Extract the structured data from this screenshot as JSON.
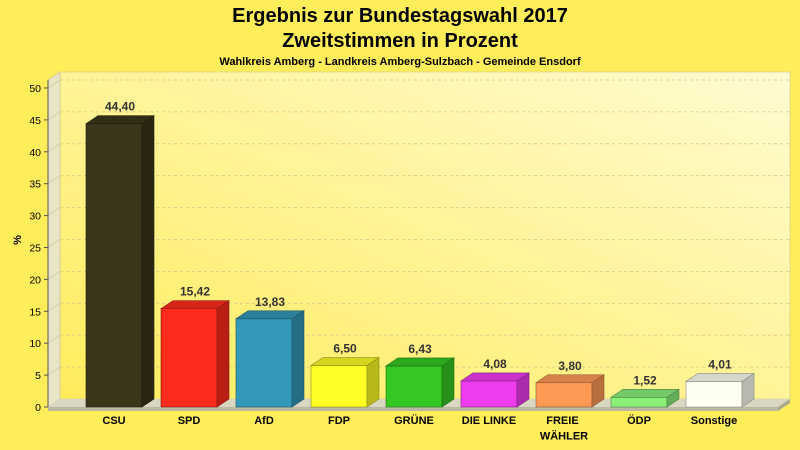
{
  "theme": {
    "background": "#ffed5a",
    "wall_light": "#fffbd2",
    "wall_base": "#ffec5c",
    "value_label_color": "#333333"
  },
  "chart_data": {
    "type": "bar",
    "bar_style": "3d",
    "title": "Ergebnis zur Bundestagswahl 2017",
    "title_line2": "Zweitstimmen in Prozent",
    "subtitle": "Wahlkreis Amberg - Landkreis Amberg-Sulzbach - Gemeinde Ensdorf",
    "xlabel": "",
    "ylabel": "%",
    "ylim": [
      0,
      50
    ],
    "yticks": [
      0,
      5,
      10,
      15,
      20,
      25,
      30,
      35,
      40,
      45,
      50
    ],
    "categories": [
      "CSU",
      "SPD",
      "AfD",
      "FDP",
      "GRÜNE",
      "DIE LINKE",
      "FREIE WÄHLER",
      "ÖDP",
      "Sonstige"
    ],
    "values": [
      44.4,
      15.42,
      13.83,
      6.5,
      6.43,
      4.08,
      3.8,
      1.52,
      4.01
    ],
    "value_labels": [
      "44,40",
      "15,42",
      "13,83",
      "6,50",
      "6,43",
      "4,08",
      "3,80",
      "1,52",
      "4,01"
    ],
    "colors": [
      "#3b3519",
      "#ff2b1c",
      "#3399b8",
      "#ffff26",
      "#36c822",
      "#f03cf0",
      "#ff9a55",
      "#8af07a",
      "#fffff2"
    ],
    "grid": true,
    "legend": "none"
  }
}
